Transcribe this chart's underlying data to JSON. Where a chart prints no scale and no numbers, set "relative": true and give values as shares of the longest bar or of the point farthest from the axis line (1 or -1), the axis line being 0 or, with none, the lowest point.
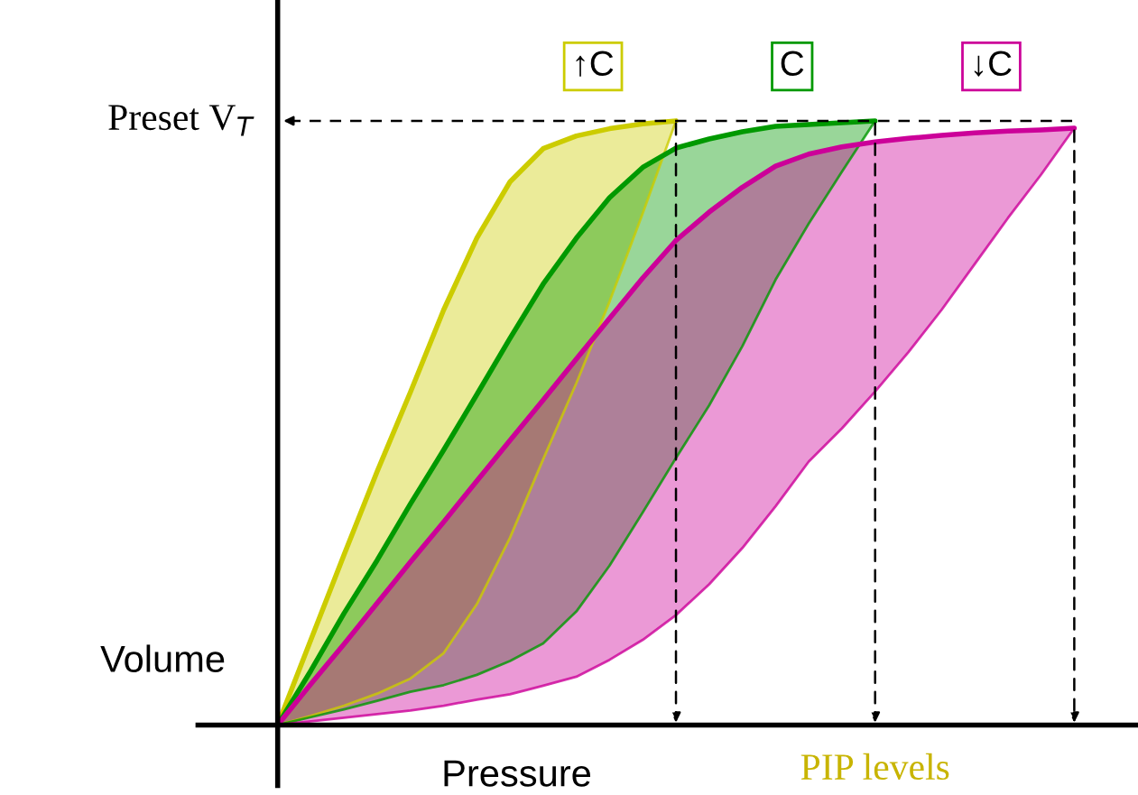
{
  "chart_data": {
    "type": "line",
    "relative": true,
    "xlabel": "Pressure",
    "ylabel": "Volume",
    "categories": [
      null,
      null,
      null,
      null,
      null,
      null,
      null,
      null,
      null,
      null,
      null,
      null,
      null,
      null,
      null,
      null,
      null,
      null,
      null,
      null,
      null,
      null,
      null,
      null,
      null
    ],
    "series": [
      {
        "name": "↑C",
        "color": "#cccc00",
        "values": [
          0,
          0.141,
          0.282,
          0.42,
          0.551,
          0.687,
          0.806,
          0.899,
          0.954,
          0.975,
          0.987,
          0.995,
          1,
          null,
          null,
          null,
          null,
          null,
          null,
          null,
          null,
          null,
          null,
          null,
          null
        ],
        "lower": [
          0,
          0.015,
          0.032,
          0.052,
          0.077,
          0.119,
          0.2,
          0.31,
          0.44,
          0.566,
          0.701,
          0.847,
          1,
          null,
          null,
          null,
          null,
          null,
          null,
          null,
          null,
          null,
          null,
          null,
          null
        ],
        "upper": [
          0,
          0.141,
          0.282,
          0.42,
          0.551,
          0.687,
          0.806,
          0.899,
          0.954,
          0.975,
          0.987,
          0.995,
          1,
          null,
          null,
          null,
          null,
          null,
          null,
          null,
          null,
          null,
          null,
          null,
          null
        ]
      },
      {
        "name": "C",
        "color": "#009900",
        "values": [
          0,
          0.09,
          0.185,
          0.273,
          0.366,
          0.455,
          0.547,
          0.64,
          0.73,
          0.806,
          0.873,
          0.923,
          0.955,
          0.97,
          0.982,
          0.991,
          0.994,
          0.997,
          1,
          null,
          null,
          null,
          null,
          null,
          null
        ],
        "lower": [
          0,
          0.013,
          0.026,
          0.04,
          0.055,
          0.066,
          0.083,
          0.106,
          0.135,
          0.188,
          0.264,
          0.352,
          0.442,
          0.529,
          0.627,
          0.737,
          0.83,
          0.916,
          1,
          null,
          null,
          null,
          null,
          null,
          null
        ],
        "upper": [
          0,
          0.09,
          0.185,
          0.273,
          0.366,
          0.455,
          0.547,
          0.64,
          0.73,
          0.806,
          0.873,
          0.923,
          0.955,
          0.97,
          0.982,
          0.991,
          0.994,
          0.997,
          1,
          null,
          null,
          null,
          null,
          null,
          null
        ]
      },
      {
        "name": "↓C",
        "color": "#cc0099",
        "values": [
          0,
          0.068,
          0.134,
          0.202,
          0.27,
          0.336,
          0.404,
          0.471,
          0.538,
          0.606,
          0.673,
          0.74,
          0.802,
          0.849,
          0.89,
          0.925,
          0.945,
          0.957,
          0.965,
          0.971,
          0.976,
          0.98,
          0.983,
          0.985,
          0.988
        ],
        "lower": [
          0,
          0.006,
          0.012,
          0.018,
          0.024,
          0.032,
          0.042,
          0.051,
          0.065,
          0.08,
          0.108,
          0.141,
          0.182,
          0.233,
          0.293,
          0.362,
          0.436,
          0.491,
          0.552,
          0.617,
          0.687,
          0.763,
          0.839,
          0.911,
          0.988
        ],
        "upper": [
          0,
          0.068,
          0.134,
          0.202,
          0.27,
          0.336,
          0.404,
          0.471,
          0.538,
          0.606,
          0.673,
          0.74,
          0.802,
          0.849,
          0.89,
          0.925,
          0.945,
          0.957,
          0.965,
          0.971,
          0.976,
          0.98,
          0.983,
          0.985,
          0.988
        ]
      }
    ],
    "ref_lines": [
      {
        "axis": "y",
        "value": 1,
        "label": "Preset V$_{T}$",
        "line_style": "dashed",
        "color": "#000000"
      }
    ],
    "annotations": [
      "PIP levels"
    ]
  }
}
